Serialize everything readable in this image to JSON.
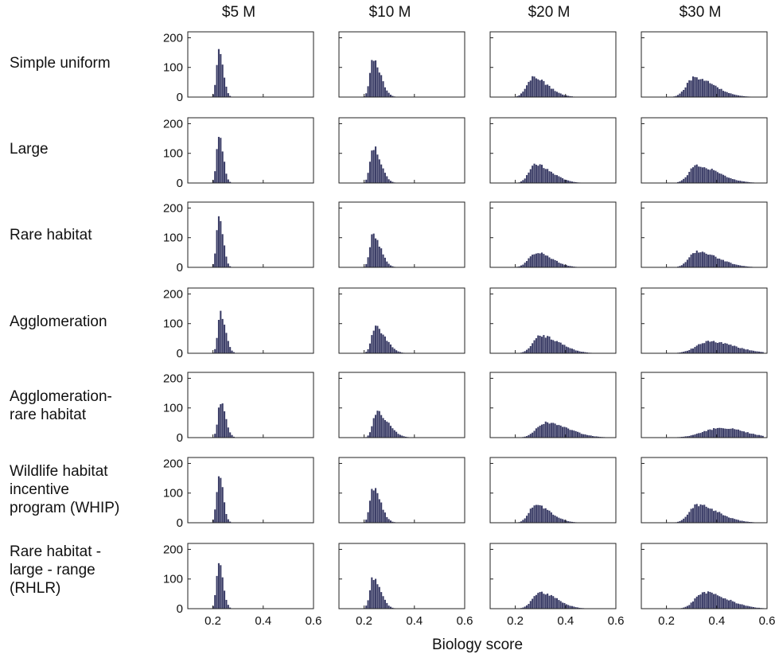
{
  "columns": [
    "$5 M",
    "$10 M",
    "$20 M",
    "$30 M"
  ],
  "rows": [
    "Simple uniform",
    "Large",
    "Rare habitat",
    "Agglomeration",
    "Agglomeration-\nrare habitat",
    "Wildlife habitat\nincentive\nprogram (WHIP)",
    "Rare habitat -\nlarge - range\n(RHLR)"
  ],
  "xlabel": "Biology score",
  "bar_color": "#3a3c66",
  "chart_data": {
    "type": "histogram-grid",
    "xlabel": "Biology score",
    "xlim": [
      0.1,
      0.6
    ],
    "ylim": [
      0,
      220
    ],
    "xticks": [
      0.2,
      0.4,
      0.6
    ],
    "xtick_labels": [
      "0.2",
      "0.4",
      "0.6"
    ],
    "yticks": [
      0,
      100,
      200
    ],
    "ytick_labels": [
      "0",
      "100",
      "200"
    ],
    "grid": false,
    "col_labels": [
      "$5 M",
      "$10 M",
      "$20 M",
      "$30 M"
    ],
    "row_labels": [
      "Simple uniform",
      "Large",
      "Rare habitat",
      "Agglomeration",
      "Agglomeration-rare habitat",
      "Wildlife habitat incentive program (WHIP)",
      "Rare habitat - large - range (RHLR)"
    ],
    "panels": [
      [
        {
          "peak": 165,
          "mode": 0.225,
          "sl": 0.01,
          "sr": 0.016
        },
        {
          "peak": 130,
          "mode": 0.235,
          "sl": 0.012,
          "sr": 0.03
        },
        {
          "peak": 65,
          "mode": 0.27,
          "sl": 0.025,
          "sr": 0.06
        },
        {
          "peak": 65,
          "mode": 0.31,
          "sl": 0.03,
          "sr": 0.08
        }
      ],
      [
        {
          "peak": 160,
          "mode": 0.225,
          "sl": 0.01,
          "sr": 0.016
        },
        {
          "peak": 122,
          "mode": 0.235,
          "sl": 0.012,
          "sr": 0.03
        },
        {
          "peak": 62,
          "mode": 0.28,
          "sl": 0.025,
          "sr": 0.065
        },
        {
          "peak": 58,
          "mode": 0.32,
          "sl": 0.03,
          "sr": 0.085
        }
      ],
      [
        {
          "peak": 170,
          "mode": 0.225,
          "sl": 0.01,
          "sr": 0.016
        },
        {
          "peak": 112,
          "mode": 0.235,
          "sl": 0.012,
          "sr": 0.03
        },
        {
          "peak": 50,
          "mode": 0.285,
          "sl": 0.03,
          "sr": 0.06
        },
        {
          "peak": 52,
          "mode": 0.32,
          "sl": 0.03,
          "sr": 0.085
        }
      ],
      [
        {
          "peak": 132,
          "mode": 0.23,
          "sl": 0.01,
          "sr": 0.02
        },
        {
          "peak": 88,
          "mode": 0.245,
          "sl": 0.015,
          "sr": 0.04
        },
        {
          "peak": 60,
          "mode": 0.3,
          "sl": 0.03,
          "sr": 0.075
        },
        {
          "peak": 40,
          "mode": 0.37,
          "sl": 0.05,
          "sr": 0.1
        }
      ],
      [
        {
          "peak": 120,
          "mode": 0.23,
          "sl": 0.01,
          "sr": 0.02
        },
        {
          "peak": 85,
          "mode": 0.25,
          "sl": 0.015,
          "sr": 0.045
        },
        {
          "peak": 50,
          "mode": 0.32,
          "sl": 0.035,
          "sr": 0.09
        },
        {
          "peak": 33,
          "mode": 0.42,
          "sl": 0.07,
          "sr": 0.09
        }
      ],
      [
        {
          "peak": 160,
          "mode": 0.225,
          "sl": 0.01,
          "sr": 0.016
        },
        {
          "peak": 120,
          "mode": 0.235,
          "sl": 0.012,
          "sr": 0.03
        },
        {
          "peak": 60,
          "mode": 0.28,
          "sl": 0.025,
          "sr": 0.06
        },
        {
          "peak": 60,
          "mode": 0.32,
          "sl": 0.03,
          "sr": 0.085
        }
      ],
      [
        {
          "peak": 160,
          "mode": 0.225,
          "sl": 0.01,
          "sr": 0.016
        },
        {
          "peak": 105,
          "mode": 0.235,
          "sl": 0.012,
          "sr": 0.03
        },
        {
          "peak": 55,
          "mode": 0.3,
          "sl": 0.03,
          "sr": 0.065
        },
        {
          "peak": 55,
          "mode": 0.35,
          "sl": 0.035,
          "sr": 0.09
        }
      ]
    ]
  }
}
